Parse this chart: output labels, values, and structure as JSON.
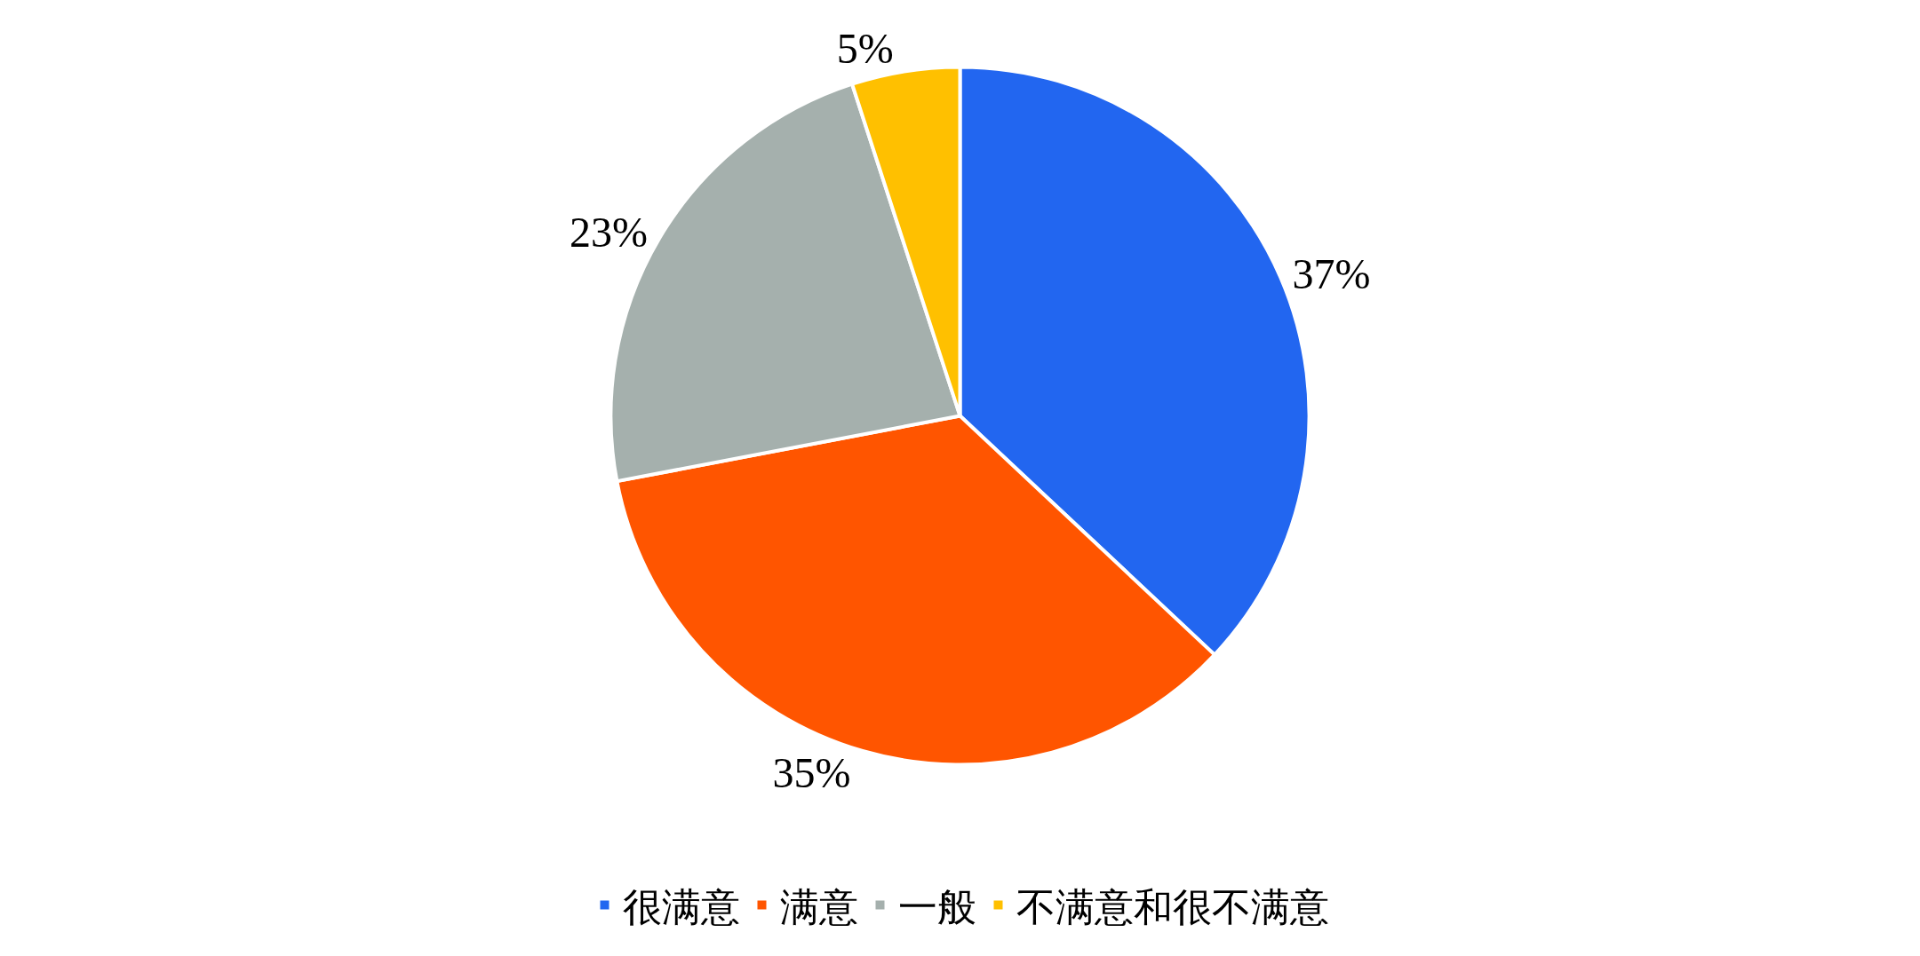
{
  "chart_data": {
    "type": "pie",
    "categories": [
      "很满意",
      "满意",
      "一般",
      "不满意和很不满意"
    ],
    "values": [
      37,
      35,
      23,
      5
    ],
    "colors": [
      "#2266f0",
      "#ff5500",
      "#a5b0ad",
      "#ffc000"
    ],
    "value_labels": [
      "37%",
      "35%",
      "23%",
      "5%"
    ],
    "legend": "bottom"
  }
}
